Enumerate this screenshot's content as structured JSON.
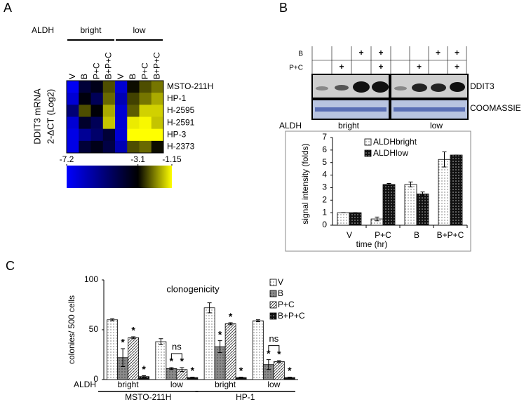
{
  "chart_data": [
    {
      "type": "heatmap",
      "panel": "A",
      "group_label": "ALDH",
      "groups": [
        "bright",
        "low"
      ],
      "y_label": [
        "DDIT3 mRNA",
        "2-ΔCT (Log2)"
      ],
      "columns": [
        "V",
        "B",
        "P+C",
        "B+P+C",
        "V",
        "B",
        "P+C",
        "B+P+C"
      ],
      "rows": [
        "MSTO-211H",
        "HP-1",
        "H-2595",
        "H-2591",
        "HP-3",
        "H-2373"
      ],
      "values": [
        [
          -7.0,
          -4.0,
          -3.5,
          -2.5,
          -6.5,
          -3.0,
          -2.5,
          -2.2
        ],
        [
          -6.5,
          -3.3,
          -4.5,
          -2.3,
          -6.0,
          -2.6,
          -2.2,
          -1.8
        ],
        [
          -5.0,
          -2.5,
          -3.2,
          -1.8,
          -6.5,
          -2.4,
          -1.5,
          -1.5
        ],
        [
          -6.5,
          -3.8,
          -4.5,
          -1.6,
          -6.5,
          -1.3,
          -1.2,
          -1.6
        ],
        [
          -6.8,
          -5.5,
          -4.8,
          -4.0,
          -6.5,
          -1.15,
          -1.15,
          -1.15
        ],
        [
          -6.8,
          -4.0,
          -3.5,
          -4.2,
          -6.0,
          -2.5,
          -2.3,
          -3.0
        ]
      ],
      "clim": [
        -7.2,
        -1.15
      ],
      "colorbar": {
        "ticks": [
          -7.2,
          -3.1,
          -1.15
        ],
        "colors": [
          "#0000ff",
          "#000000",
          "#ffff00"
        ]
      }
    },
    {
      "type": "bar",
      "panel": "B",
      "blot": {
        "rows": [
          {
            "label": "B",
            "signs": [
              null,
              null,
              "+",
              "+",
              null,
              null,
              "+",
              "+"
            ]
          },
          {
            "label": "P+C",
            "signs": [
              null,
              "+",
              null,
              "+",
              null,
              "+",
              null,
              "+"
            ]
          }
        ],
        "bands": [
          "DDIT3",
          "COOMASSIE"
        ]
      },
      "group_label": "ALDH",
      "groups": [
        "bright",
        "low"
      ],
      "categories": [
        "V",
        "P+C",
        "B",
        "B+P+C"
      ],
      "x_label": "time (hr)",
      "y_label": "signal intensity (folds)",
      "ylim": [
        0,
        7
      ],
      "yticks": [
        0,
        1,
        2,
        3,
        4,
        5,
        6,
        7
      ],
      "series": [
        {
          "name": "ALDHbright",
          "pattern": "dots",
          "values": [
            1,
            0.5,
            3.25,
            5.25
          ],
          "errors": [
            0,
            0.15,
            0.2,
            0.6
          ]
        },
        {
          "name": "ALDHlow",
          "pattern": "dark-dots",
          "values": [
            1,
            3.25,
            2.5,
            5.6
          ],
          "errors": [
            0,
            0.08,
            0.15,
            0
          ]
        }
      ]
    },
    {
      "type": "bar",
      "panel": "C",
      "title": "clonogenicity",
      "y_label": "colonies/ 500 cells",
      "group_label": "ALDH",
      "categories": [
        "bright",
        "low",
        "bright",
        "low"
      ],
      "supergroups": [
        "MSTO-211H",
        "HP-1"
      ],
      "bracket_labels": [
        null,
        "ns",
        null,
        "ns"
      ],
      "ylim": [
        0,
        100
      ],
      "yticks": [
        0,
        50,
        100
      ],
      "series": [
        {
          "name": "V",
          "pattern": "dots",
          "values": [
            60,
            38,
            72,
            59
          ],
          "errors": [
            1,
            3,
            5,
            1
          ],
          "marker_labels": [
            null,
            null,
            null,
            null
          ]
        },
        {
          "name": "B",
          "pattern": "gray-dots",
          "values": [
            22,
            11,
            33,
            15
          ],
          "errors": [
            9,
            1,
            6,
            5
          ],
          "marker_labels": [
            "*",
            "*",
            "*",
            "*"
          ]
        },
        {
          "name": "P+C",
          "pattern": "hatch",
          "values": [
            42,
            10,
            56,
            18
          ],
          "errors": [
            1,
            2,
            1,
            1
          ],
          "marker_labels": [
            "*",
            "*",
            "*",
            "*"
          ]
        },
        {
          "name": "B+P+C",
          "pattern": "dark-dots",
          "values": [
            3,
            2,
            2,
            2
          ],
          "errors": [
            1,
            0.5,
            0.5,
            0.5
          ],
          "marker_labels": [
            "*",
            "*",
            "*",
            "*"
          ]
        }
      ]
    }
  ]
}
